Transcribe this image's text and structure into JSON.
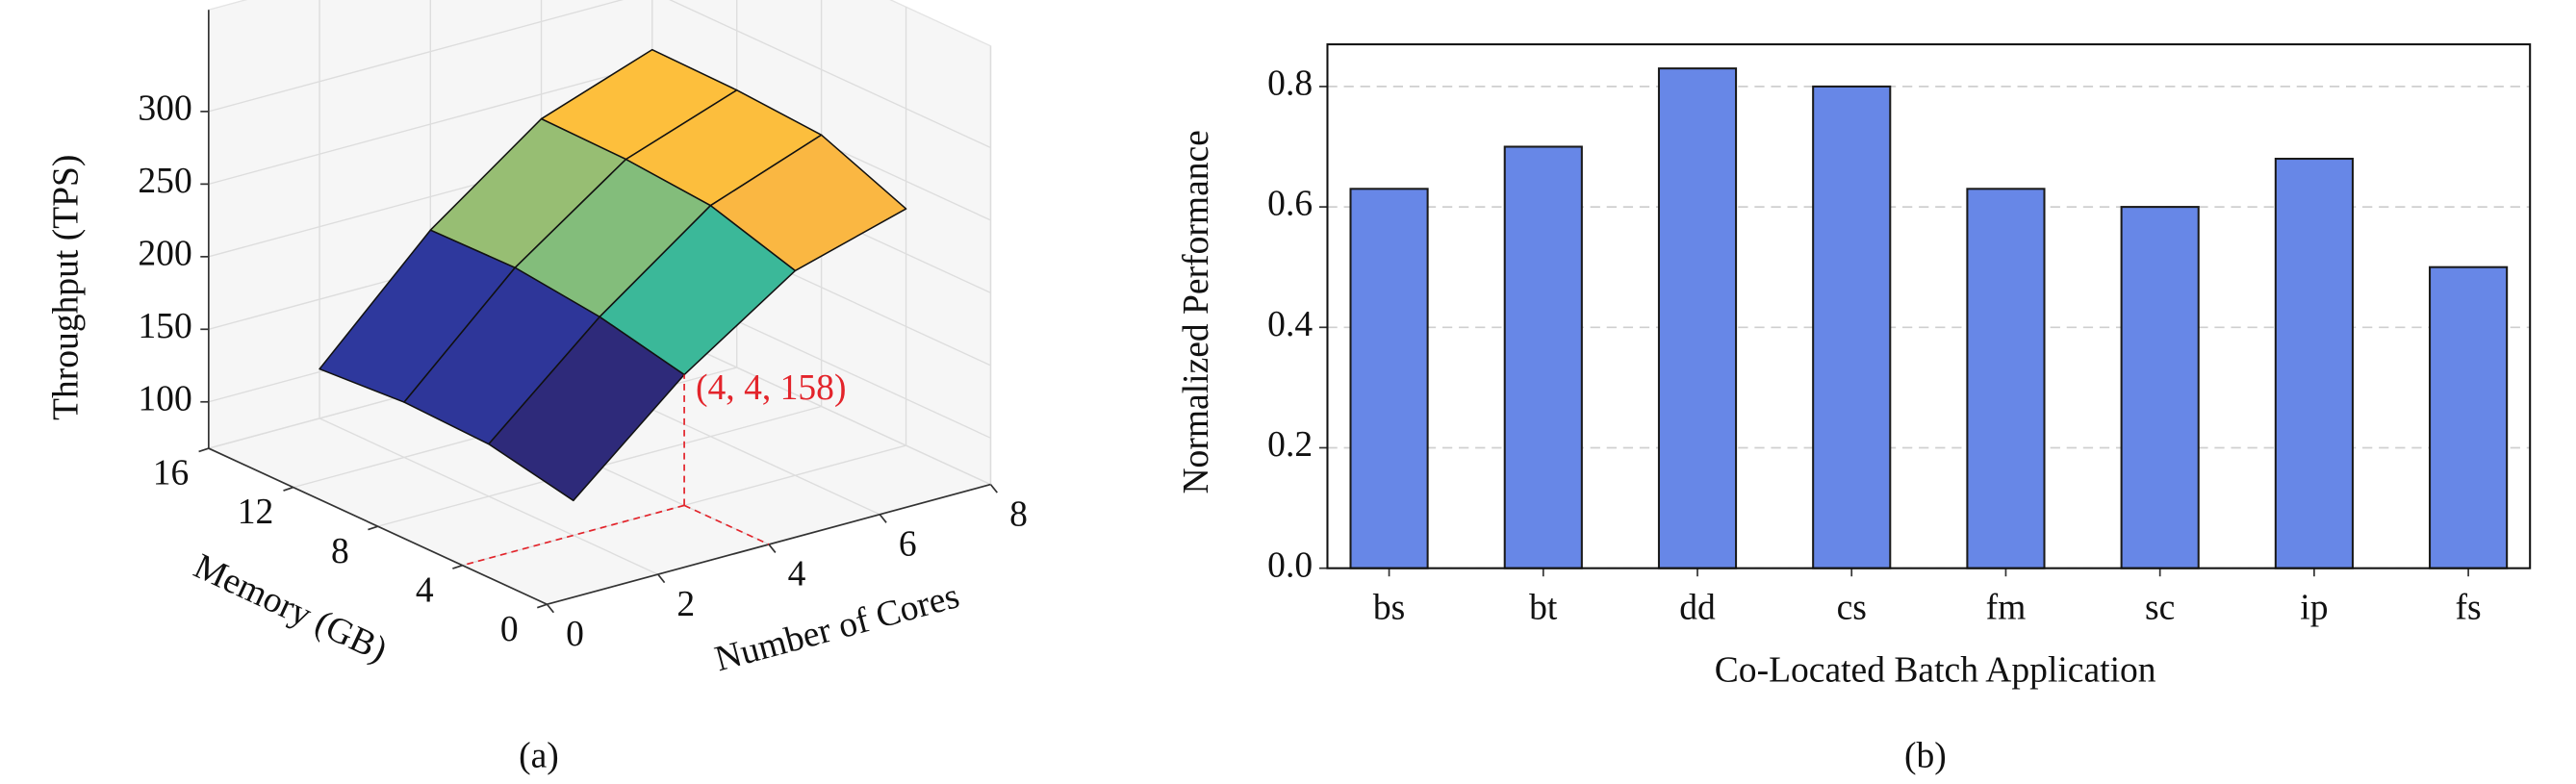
{
  "chart_data": [
    {
      "type": "surface",
      "caption": "(a)",
      "xlabel": "Number of Cores",
      "ylabel": "Memory (GB)",
      "zlabel": "Throughput (TPS)",
      "x": [
        2,
        4,
        6,
        8
      ],
      "y": [
        4,
        8,
        12,
        16
      ],
      "z": [
        [
          92,
          158,
          209,
          231
        ],
        [
          104,
          171,
          227,
          255
        ],
        [
          106,
          178,
          232,
          259
        ],
        [
          102,
          177,
          233,
          260
        ]
      ],
      "xlim": [
        0,
        8
      ],
      "xticks": [
        0,
        2,
        4,
        6,
        8
      ],
      "ylim": [
        0,
        16
      ],
      "yticks": [
        0,
        4,
        8,
        12,
        16
      ],
      "zlim": [
        68,
        370
      ],
      "zticks": [
        100,
        150,
        200,
        250,
        300
      ],
      "colormap": [
        "#2e2a7a",
        "#2f46c0",
        "#07a7c8",
        "#2ab7a0",
        "#a9bf6b",
        "#f9b543",
        "#fdbf3c"
      ],
      "grid": true,
      "annotation": {
        "text": "(4, 4, 158)",
        "x": 4,
        "y": 4,
        "z": 158,
        "color": "#e3242b"
      }
    },
    {
      "type": "bar",
      "caption": "(b)",
      "xlabel": "Co-Located Batch Application",
      "ylabel": "Normalized Performance",
      "categories": [
        "bs",
        "bt",
        "dd",
        "cs",
        "fm",
        "sc",
        "ip",
        "fs"
      ],
      "values": [
        0.63,
        0.7,
        0.83,
        0.8,
        0.63,
        0.6,
        0.68,
        0.5
      ],
      "color": "#6787e7",
      "ylim": [
        0,
        0.87
      ],
      "yticks": [
        {
          "value": 0,
          "label": "0.0"
        },
        0.2,
        0.4,
        0.6,
        0.8
      ],
      "grid": true
    }
  ]
}
